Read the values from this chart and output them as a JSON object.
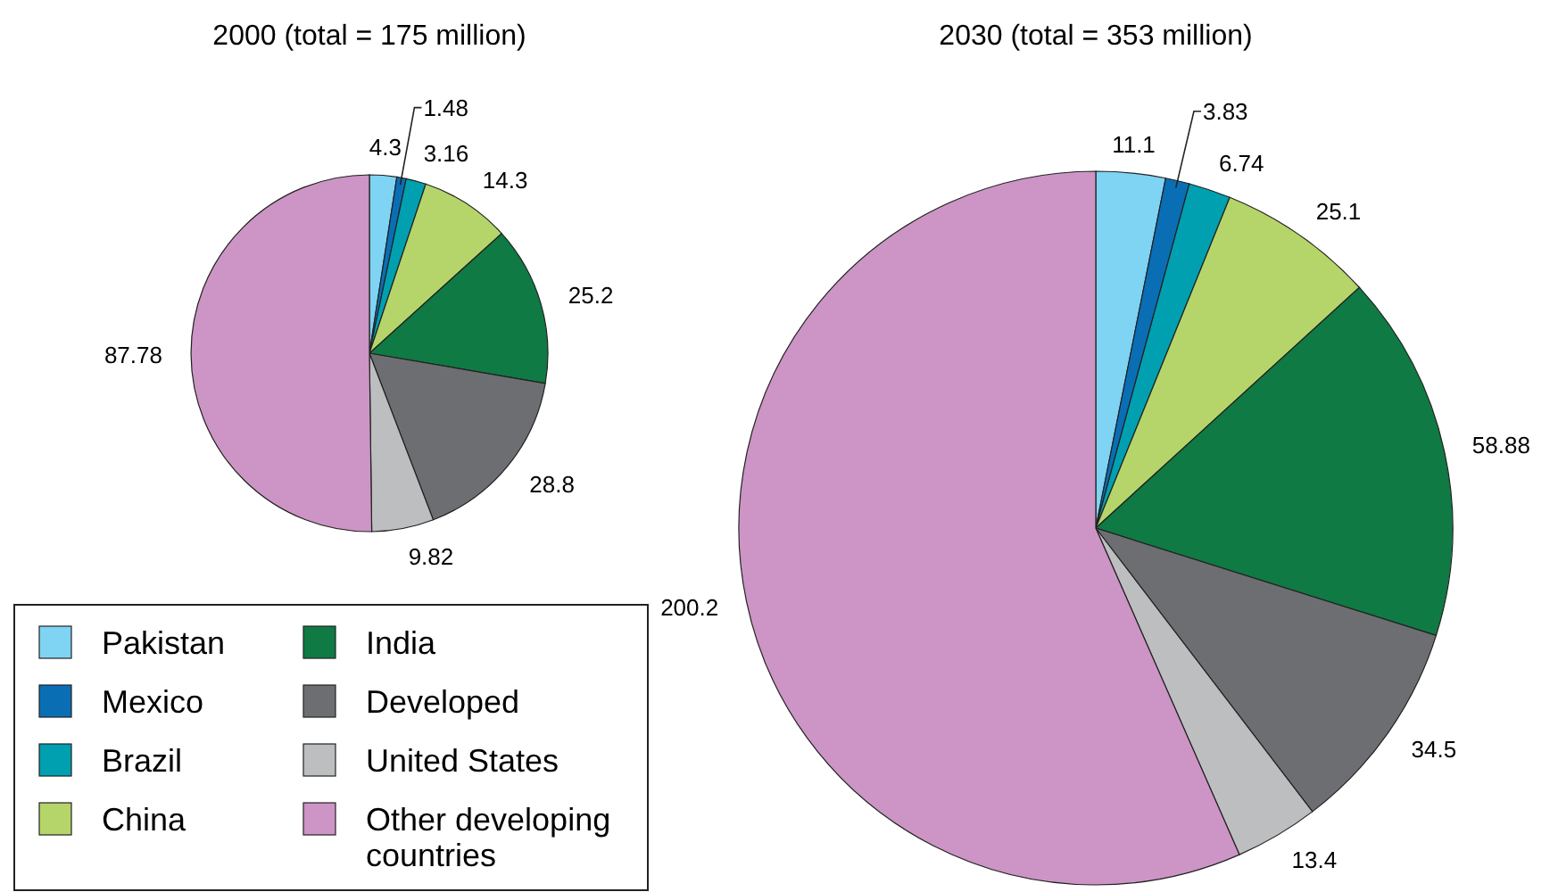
{
  "chart_data": [
    {
      "type": "pie",
      "title": "2000 (total = 175 million)",
      "categories": [
        "Pakistan",
        "Mexico",
        "Brazil",
        "China",
        "India",
        "Developed",
        "United States",
        "Other developing countries"
      ],
      "values": [
        4.3,
        1.48,
        3.16,
        14.3,
        25.2,
        28.8,
        9.82,
        87.78
      ],
      "colors": [
        "#7fd3f3",
        "#0a6eb4",
        "#00a0b0",
        "#b5d56a",
        "#0f7a44",
        "#6d6e71",
        "#bcbec0",
        "#cc95c5"
      ],
      "data_labels": true,
      "legend": "bottom left"
    },
    {
      "type": "pie",
      "title": "2030 (total = 353 million)",
      "categories": [
        null,
        null,
        null,
        null,
        null,
        null,
        null,
        null
      ],
      "values": [
        11.1,
        3.83,
        6.74,
        25.1,
        58.88,
        34.5,
        13.4,
        200.2
      ],
      "colors": [
        "#7fd3f3",
        "#0a6eb4",
        "#00a0b0",
        "#b5d56a",
        "#0f7a44",
        "#6d6e71",
        "#bcbec0",
        "#cc95c5"
      ],
      "data_labels": true,
      "legend": false
    }
  ]
}
